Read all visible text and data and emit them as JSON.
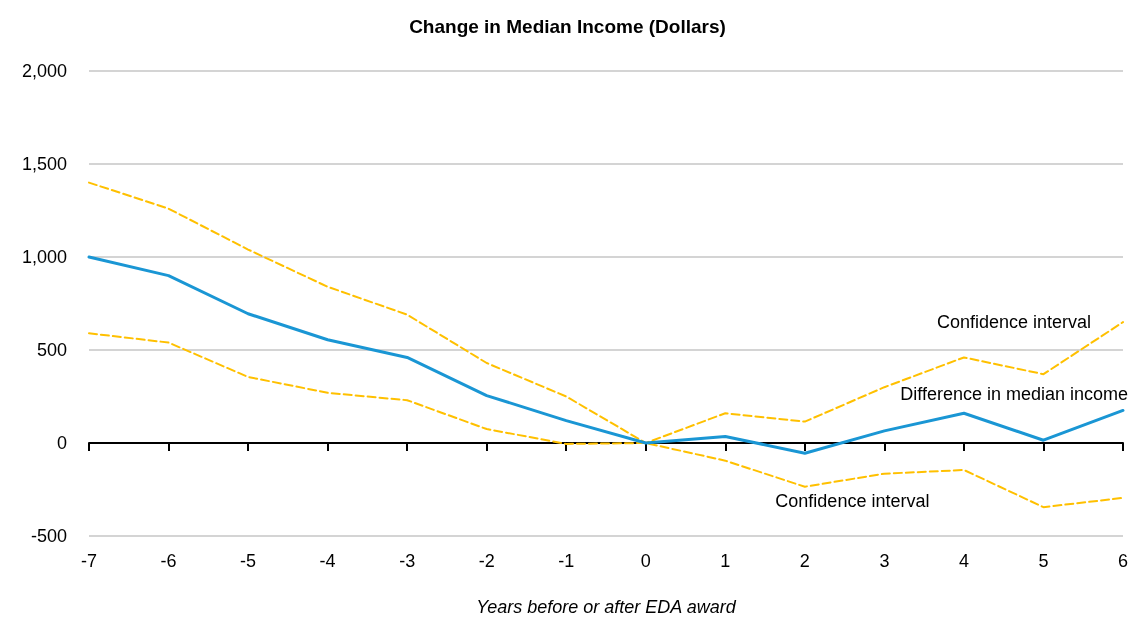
{
  "chart_data": {
    "type": "line",
    "title": "Change in Median Income (Dollars)",
    "xlabel": "Years before or after EDA award",
    "categories": [
      "-7",
      "-6",
      "-5",
      "-4",
      "-3",
      "-2",
      "-1",
      "0",
      "1",
      "2",
      "3",
      "4",
      "5",
      "6"
    ],
    "series": [
      {
        "name": "Difference in median income",
        "color": "#1a96d4",
        "line_style": "solid",
        "values": [
          1000,
          900,
          695,
          555,
          460,
          255,
          120,
          0,
          35,
          -55,
          65,
          160,
          15,
          175
        ]
      },
      {
        "name": "Confidence interval",
        "color": "#ffc000",
        "line_style": "dashed",
        "values": [
          1400,
          1260,
          1040,
          840,
          690,
          430,
          250,
          0,
          160,
          115,
          300,
          460,
          370,
          650
        ]
      },
      {
        "name": "Confidence interval",
        "color": "#ffc000",
        "line_style": "dashed",
        "values": [
          590,
          540,
          355,
          270,
          230,
          75,
          -5,
          0,
          -95,
          -235,
          -165,
          -145,
          -345,
          -295
        ]
      }
    ],
    "ylim": [
      -500,
      2000
    ],
    "yticks": [
      -500,
      0,
      500,
      {
        "value": 1000,
        "label": "1,000"
      },
      {
        "value": 1500,
        "label": "1,500"
      },
      {
        "value": 2000,
        "label": "2,000"
      }
    ],
    "grid": "y",
    "legend": false,
    "marker": "none"
  }
}
